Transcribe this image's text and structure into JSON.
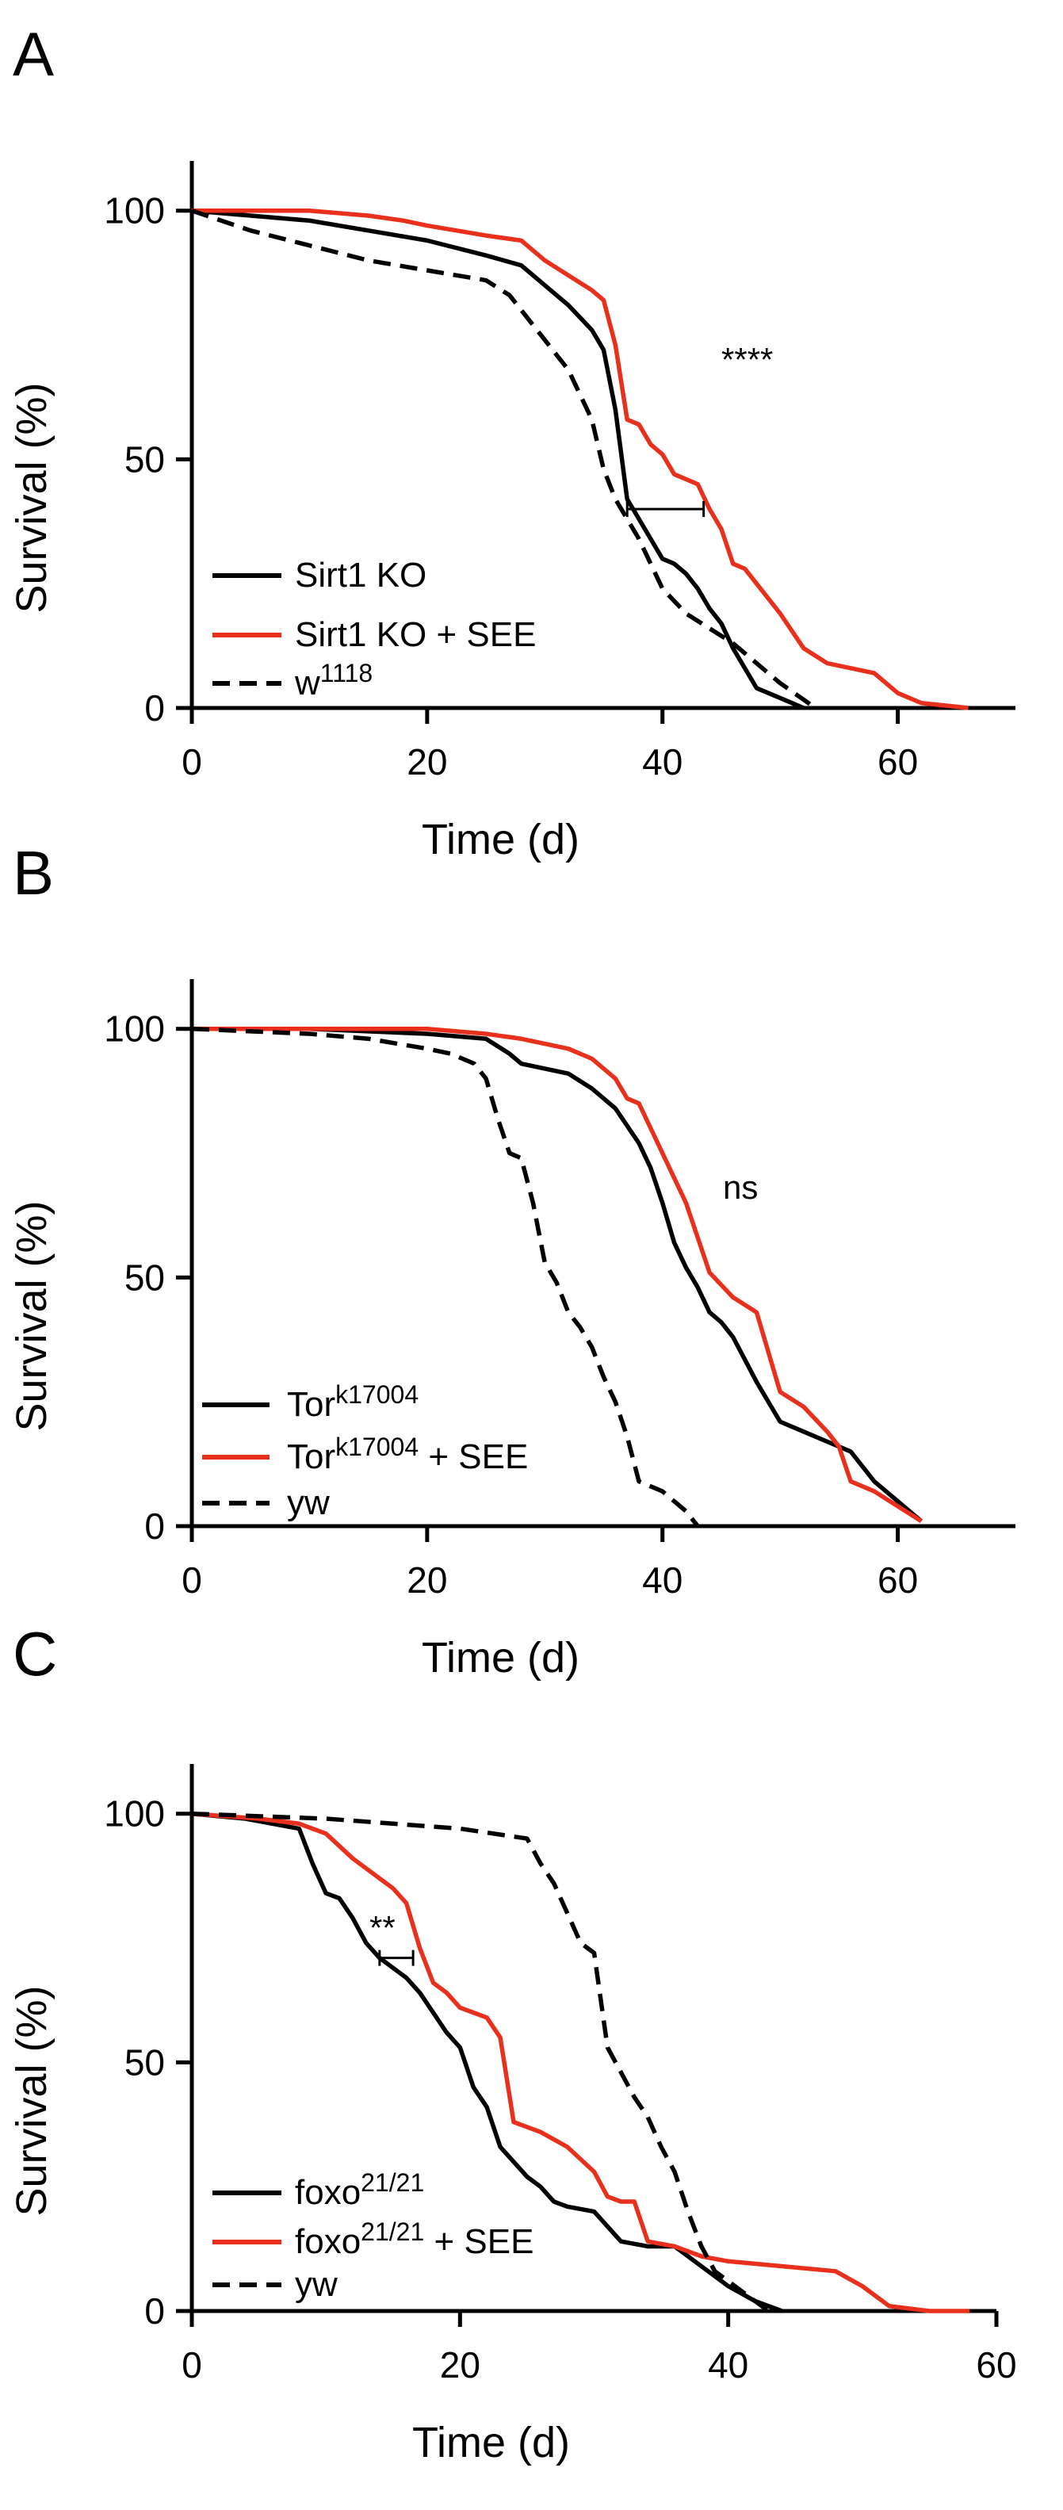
{
  "colors": {
    "black": "#000000",
    "red": "#e8301c"
  },
  "chart_data": [
    {
      "panel": "A",
      "type": "line",
      "xlabel": "Time (d)",
      "ylabel": "Survival (%)",
      "xlim": [
        0,
        70
      ],
      "ylim": [
        0,
        110
      ],
      "xticks": [
        0,
        20,
        40,
        60
      ],
      "yticks": [
        0,
        50,
        100
      ],
      "annotation": "****",
      "series": [
        {
          "name": "Sirt1 KO",
          "color": "#000000",
          "dash": false,
          "x": [
            0,
            5,
            10,
            15,
            20,
            25,
            28,
            30,
            32,
            34,
            35,
            36,
            37,
            38,
            39,
            40,
            41,
            42,
            43,
            44,
            45,
            46,
            47,
            48,
            50,
            52
          ],
          "y": [
            100,
            99,
            98,
            96,
            94,
            91,
            89,
            85,
            81,
            76,
            72,
            60,
            42,
            38,
            34,
            30,
            29,
            27,
            24,
            20,
            17,
            12,
            8,
            4,
            2,
            0
          ]
        },
        {
          "name": "Sirt1 KO + SEE",
          "color": "#e8301c",
          "dash": false,
          "x": [
            0,
            10,
            15,
            18,
            20,
            25,
            28,
            30,
            32,
            34,
            35,
            36,
            37,
            38,
            39,
            40,
            41,
            42,
            43,
            44,
            45,
            46,
            47,
            48,
            50,
            52,
            54,
            58,
            60,
            62,
            66
          ],
          "y": [
            100,
            100,
            99,
            98,
            97,
            95,
            94,
            90,
            87,
            84,
            82,
            73,
            58,
            57,
            53,
            51,
            47,
            46,
            45,
            40,
            36,
            29,
            28,
            25,
            19,
            12,
            9,
            7,
            3,
            1,
            0
          ]
        },
        {
          "name": "w1118",
          "color": "#000000",
          "dash": true,
          "x": [
            0,
            5,
            10,
            15,
            20,
            25,
            27,
            28,
            30,
            32,
            34,
            35,
            36,
            37,
            38,
            40,
            42,
            44,
            46,
            48,
            50,
            53
          ],
          "y": [
            100,
            96,
            93,
            90,
            88,
            86,
            83,
            80,
            74,
            68,
            58,
            48,
            42,
            38,
            34,
            24,
            19,
            16,
            13,
            9,
            5,
            0
          ]
        }
      ],
      "error_bar": {
        "x1": 37,
        "x2": 43.5,
        "y": 40
      },
      "legend": [
        {
          "label": "Sirt1 KO",
          "sup": "",
          "suffix": ""
        },
        {
          "label": "Sirt1 KO + SEE",
          "sup": "",
          "suffix": ""
        },
        {
          "label": "w",
          "sup": "1118",
          "suffix": ""
        }
      ]
    },
    {
      "panel": "B",
      "type": "line",
      "xlabel": "Time (d)",
      "ylabel": "Survival (%)",
      "xlim": [
        0,
        70
      ],
      "ylim": [
        0,
        110
      ],
      "xticks": [
        0,
        20,
        40,
        60
      ],
      "yticks": [
        0,
        50,
        100
      ],
      "annotation": "ns",
      "series": [
        {
          "name": "Tork17004",
          "color": "#000000",
          "dash": false,
          "x": [
            0,
            10,
            20,
            25,
            27,
            28,
            30,
            32,
            34,
            36,
            38,
            39,
            40,
            41,
            42,
            43,
            44,
            45,
            46,
            48,
            50,
            52,
            54,
            56,
            58,
            60,
            62
          ],
          "y": [
            100,
            100,
            99,
            98,
            95,
            93,
            92,
            91,
            88,
            84,
            77,
            72,
            65,
            57,
            52,
            48,
            43,
            41,
            38,
            29,
            21,
            19,
            17,
            15,
            9,
            5,
            1
          ]
        },
        {
          "name": "Tork17004 + SEE",
          "color": "#e8301c",
          "dash": false,
          "x": [
            0,
            10,
            20,
            25,
            28,
            30,
            32,
            34,
            36,
            37,
            38,
            39,
            40,
            41,
            42,
            43,
            44,
            46,
            48,
            50,
            52,
            54,
            55,
            56,
            58,
            60,
            62
          ],
          "y": [
            100,
            100,
            100,
            99,
            98,
            97,
            96,
            94,
            90,
            86,
            85,
            80,
            75,
            70,
            65,
            58,
            51,
            46,
            43,
            27,
            24,
            19,
            16,
            9,
            7,
            4,
            1
          ]
        },
        {
          "name": "yw",
          "color": "#000000",
          "dash": true,
          "x": [
            0,
            10,
            15,
            20,
            22,
            24,
            25,
            26,
            27,
            28,
            29,
            30,
            31,
            32,
            33,
            34,
            35,
            36,
            37,
            38,
            40,
            42,
            43
          ],
          "y": [
            100,
            99,
            98,
            96,
            95,
            93,
            90,
            82,
            75,
            74,
            65,
            53,
            49,
            43,
            40,
            36,
            30,
            25,
            18,
            9,
            7,
            3,
            0
          ]
        }
      ],
      "error_bar": null,
      "legend": [
        {
          "label": "Tor",
          "sup": "k17004",
          "suffix": ""
        },
        {
          "label": "Tor",
          "sup": "k17004",
          "suffix": " + SEE"
        },
        {
          "label": "yw",
          "sup": "",
          "suffix": ""
        }
      ]
    },
    {
      "panel": "C",
      "type": "line",
      "xlabel": "Time (d)",
      "ylabel": "Survival (%)",
      "xlim": [
        0,
        60
      ],
      "ylim": [
        0,
        110
      ],
      "xticks": [
        0,
        20,
        40,
        60
      ],
      "yticks": [
        0,
        50,
        100
      ],
      "annotation": "**",
      "series": [
        {
          "name": "foxo21/21",
          "color": "#000000",
          "dash": false,
          "x": [
            0,
            4,
            6,
            8,
            9,
            10,
            11,
            12,
            13,
            14,
            15,
            16,
            17,
            18,
            19,
            20,
            21,
            22,
            23,
            24,
            25,
            26,
            27,
            28,
            30,
            32,
            34,
            36,
            38,
            40,
            42,
            44
          ],
          "y": [
            100,
            99,
            98,
            97,
            90,
            84,
            83,
            79,
            74,
            71,
            69,
            67,
            64,
            60,
            56,
            53,
            45,
            41,
            33,
            30,
            27,
            25,
            22,
            21,
            20,
            14,
            13,
            13,
            9,
            5,
            2,
            0
          ]
        },
        {
          "name": "foxo21/21 + SEE",
          "color": "#e8301c",
          "dash": false,
          "x": [
            0,
            5,
            8,
            10,
            12,
            14,
            15,
            16,
            17,
            18,
            19,
            20,
            21,
            22,
            23,
            24,
            25,
            26,
            28,
            30,
            31,
            32,
            33,
            34,
            36,
            38,
            40,
            44,
            48,
            50,
            52,
            55,
            58
          ],
          "y": [
            100,
            99,
            98,
            96,
            91,
            87,
            85,
            82,
            73,
            66,
            64,
            61,
            60,
            59,
            55,
            38,
            37,
            36,
            33,
            28,
            23,
            22,
            22,
            14,
            13,
            11,
            10,
            9,
            8,
            5,
            1,
            0,
            0
          ]
        },
        {
          "name": "yw",
          "color": "#000000",
          "dash": true,
          "x": [
            0,
            10,
            15,
            20,
            25,
            26,
            27,
            28,
            29,
            30,
            31,
            32,
            33,
            34,
            35,
            36,
            37,
            38,
            39,
            40,
            41,
            42,
            43
          ],
          "y": [
            100,
            99,
            98,
            97,
            95,
            90,
            86,
            80,
            74,
            72,
            53,
            48,
            43,
            39,
            33,
            28,
            20,
            13,
            8,
            6,
            4,
            2,
            0
          ]
        }
      ],
      "error_bar": {
        "x1": 14,
        "x2": 16.5,
        "y": 71
      },
      "legend": [
        {
          "label": "foxo",
          "sup": "21/21",
          "suffix": ""
        },
        {
          "label": "foxo",
          "sup": "21/21",
          "suffix": " + SEE"
        },
        {
          "label": "yw",
          "sup": "",
          "suffix": ""
        }
      ]
    }
  ]
}
